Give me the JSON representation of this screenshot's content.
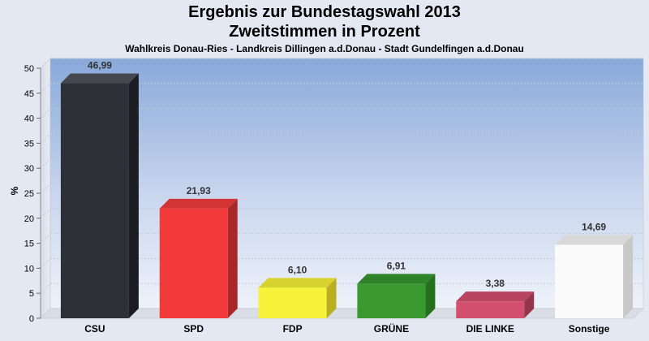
{
  "chart_data": {
    "type": "bar",
    "title": "Ergebnis zur Bundestagswahl 2013",
    "subtitle": "Zweitstimmen in Prozent",
    "caption": "Wahlkreis Donau-Ries - Landkreis Dillingen a.d.Donau - Stadt Gundelfingen a.d.Donau",
    "ylabel": "%",
    "xlabel": "",
    "ylim": [
      0,
      50
    ],
    "yticks": [
      0,
      5,
      10,
      15,
      20,
      25,
      30,
      35,
      40,
      45,
      50
    ],
    "grid": true,
    "legend": "none",
    "categories": [
      "CSU",
      "SPD",
      "FDP",
      "GRÜNE",
      "DIE LINKE",
      "Sonstige"
    ],
    "values": [
      46.99,
      21.93,
      6.1,
      6.91,
      3.38,
      14.69
    ],
    "value_labels": [
      "46,99",
      "21,93",
      "6,10",
      "6,91",
      "3,38",
      "14,69"
    ],
    "colors": [
      "#2e3038",
      "#f23a3a",
      "#f7f23a",
      "#3a9a30",
      "#d24f6e",
      "#fafafa"
    ],
    "colors_dark": [
      "#1c1d22",
      "#a8282a",
      "#b8b020",
      "#25701f",
      "#95354c",
      "#c8c8c8"
    ],
    "colors_top": [
      "#45474f",
      "#d33434",
      "#d8d22e",
      "#2f8228",
      "#b84460",
      "#d8d8d8"
    ]
  }
}
